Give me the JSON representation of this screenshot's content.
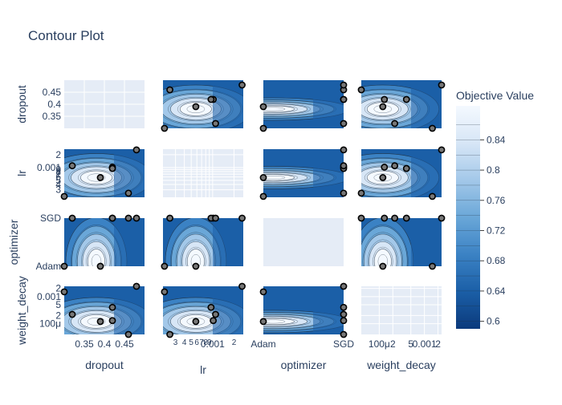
{
  "chart_data": {
    "type": "contour",
    "title": "Contour Plot",
    "params": [
      "dropout",
      "lr",
      "optimizer",
      "weight_decay"
    ],
    "axes": {
      "dropout": {
        "scale": "linear",
        "range": [
          0.3,
          0.5
        ],
        "ticks": [
          {
            "v": 0.35,
            "t": "0.35"
          },
          {
            "v": 0.4,
            "t": "0.4"
          },
          {
            "v": 0.45,
            "t": "0.45"
          }
        ]
      },
      "lr": {
        "scale": "log",
        "range": [
          0.0002,
          0.0027
        ],
        "ticks": [
          {
            "v": 0.0003,
            "t": "3"
          },
          {
            "v": 0.0004,
            "t": "4"
          },
          {
            "v": 0.0005,
            "t": "5"
          },
          {
            "v": 0.0006,
            "t": "6"
          },
          {
            "v": 0.0007,
            "t": "7"
          },
          {
            "v": 0.0008,
            "t": "8"
          },
          {
            "v": 0.0009,
            "t": "9"
          },
          {
            "v": 0.001,
            "t": "0.001"
          },
          {
            "v": 0.002,
            "t": "2"
          }
        ]
      },
      "optimizer": {
        "scale": "category",
        "categories": [
          "Adam",
          "SGD"
        ],
        "ticks": [
          {
            "v": 0,
            "t": "Adam"
          },
          {
            "v": 1,
            "t": "SGD"
          }
        ]
      },
      "weight_decay": {
        "scale": "log",
        "range": [
          4e-05,
          0.0024
        ],
        "ticks": [
          {
            "v": 0.0001,
            "t": "100μ"
          },
          {
            "v": 0.0002,
            "t": "2"
          },
          {
            "v": 0.0005,
            "t": "5"
          },
          {
            "v": 0.001,
            "t": "0.001"
          },
          {
            "v": 0.002,
            "t": "2"
          }
        ]
      }
    },
    "trials": [
      {
        "dropout": 0.46,
        "lr": 0.00025,
        "optimizer": "SGD",
        "weight_decay": 4e-05
      },
      {
        "dropout": 0.39,
        "lr": 0.00058,
        "optimizer": "Adam",
        "weight_decay": 0.00012
      },
      {
        "dropout": 0.42,
        "lr": 0.00102,
        "optimizer": "SGD",
        "weight_decay": 0.00013
      },
      {
        "dropout": 0.42,
        "lr": 0.00095,
        "optimizer": "SGD",
        "weight_decay": 0.0004
      },
      {
        "dropout": 0.3,
        "lr": 0.00021,
        "optimizer": "Adam",
        "weight_decay": 0.0015
      },
      {
        "dropout": 0.48,
        "lr": 0.0026,
        "optimizer": "SGD",
        "weight_decay": 0.0024
      },
      {
        "dropout": 0.32,
        "lr": 0.0011,
        "optimizer": "SGD",
        "weight_decay": 0.00022
      }
    ],
    "best_region": {
      "dropout": 0.38,
      "lr": 0.00058,
      "weight_decay": 0.00012,
      "optimizer": "Adam"
    },
    "colorbar": {
      "title": "Objective Value",
      "range": [
        0.59,
        0.885
      ],
      "ticks": [
        {
          "v": 0.6,
          "t": "0.6"
        },
        {
          "v": 0.64,
          "t": "0.64"
        },
        {
          "v": 0.68,
          "t": "0.68"
        },
        {
          "v": 0.72,
          "t": "0.72"
        },
        {
          "v": 0.76,
          "t": "0.76"
        },
        {
          "v": 0.8,
          "t": "0.8"
        },
        {
          "v": 0.84,
          "t": "0.84"
        }
      ],
      "colors": [
        "#0b3a7c",
        "#1b5fa7",
        "#3b82c4",
        "#6aa7d8",
        "#a3c8e9",
        "#d7e6f6",
        "#f4f9ff"
      ]
    },
    "grid": true
  }
}
